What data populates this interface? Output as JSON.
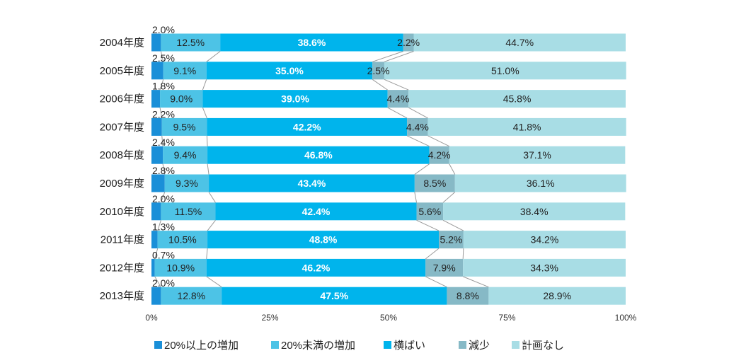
{
  "chart_data": {
    "type": "bar",
    "orientation": "horizontal",
    "stacked": "percent",
    "categories": [
      "2004年度",
      "2005年度",
      "2006年度",
      "2007年度",
      "2008年度",
      "2009年度",
      "2010年度",
      "2011年度",
      "2012年度",
      "2013年度"
    ],
    "series": [
      {
        "name": "20%以上の増加",
        "color": "#1a8fd8",
        "values": [
          2.0,
          2.5,
          1.8,
          2.2,
          2.4,
          2.8,
          2.0,
          1.3,
          0.7,
          2.0
        ],
        "labels": [
          "2.0%",
          "2.5%",
          "1.8%",
          "2.2%",
          "2.4%",
          "2.8%",
          "2.0%",
          "1.3%",
          "0.7%",
          "2.0%"
        ]
      },
      {
        "name": "20%未満の増加",
        "color": "#4dc3e6",
        "values": [
          12.5,
          9.1,
          9.0,
          9.5,
          9.4,
          9.3,
          11.5,
          10.5,
          10.9,
          12.8
        ],
        "labels": [
          "12.5%",
          "9.1%",
          "9.0%",
          "9.5%",
          "9.4%",
          "9.3%",
          "11.5%",
          "10.5%",
          "10.9%",
          "12.8%"
        ]
      },
      {
        "name": "横ばい",
        "color": "#00b4ec",
        "values": [
          38.6,
          35.0,
          39.0,
          42.2,
          46.8,
          43.4,
          42.4,
          48.8,
          46.2,
          47.5
        ],
        "labels": [
          "38.6%",
          "35.0%",
          "39.0%",
          "42.2%",
          "46.8%",
          "43.4%",
          "42.4%",
          "48.8%",
          "46.2%",
          "47.5%"
        ]
      },
      {
        "name": "減少",
        "color": "#86b9c6",
        "values": [
          2.2,
          2.5,
          4.4,
          4.4,
          4.2,
          8.5,
          5.6,
          5.2,
          7.9,
          8.8
        ],
        "labels": [
          "2.2%",
          "2.5%",
          "4.4%",
          "4.4%",
          "4.2%",
          "8.5%",
          "5.6%",
          "5.2%",
          "7.9%",
          "8.8%"
        ]
      },
      {
        "name": "計画なし",
        "color": "#a8dde5",
        "values": [
          44.7,
          51.0,
          45.8,
          41.8,
          37.1,
          36.1,
          38.4,
          34.2,
          34.3,
          28.9
        ],
        "labels": [
          "44.7%",
          "51.0%",
          "45.8%",
          "41.8%",
          "37.1%",
          "36.1%",
          "38.4%",
          "34.2%",
          "34.3%",
          "28.9%"
        ]
      }
    ],
    "x_ticks": [
      "0%",
      "25%",
      "50%",
      "75%",
      "100%"
    ],
    "xlim": [
      0,
      100
    ],
    "legend_position": "bottom",
    "series_lines": true,
    "grid": false
  }
}
